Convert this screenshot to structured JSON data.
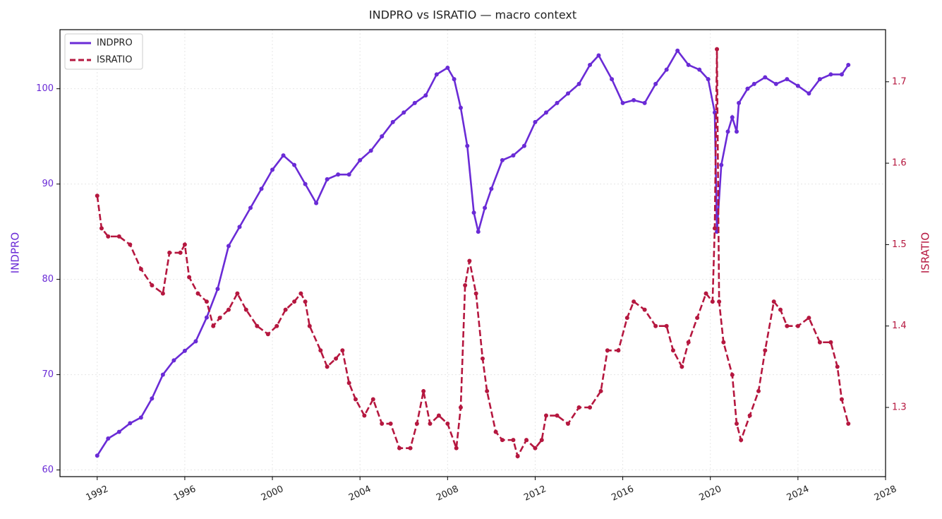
{
  "chart_data": {
    "type": "line",
    "title": "INDPRO vs ISRATIO — macro context",
    "ylabel": "INDPRO",
    "y2label": "ISRATIO",
    "xlim": [
      1990.3,
      2028
    ],
    "xticks": [
      1992,
      1996,
      2000,
      2004,
      2008,
      2012,
      2016,
      2020,
      2024,
      2028
    ],
    "ylim": [
      59.3,
      106.2
    ],
    "yticks": [
      60,
      70,
      80,
      90,
      100
    ],
    "y2lim": [
      1.215,
      1.764
    ],
    "y2ticks": [
      1.3,
      1.4,
      1.5,
      1.6,
      1.7
    ],
    "grid": true,
    "legend": "upper-left",
    "series": [
      {
        "name": "INDPRO",
        "color": "#6a2bd6",
        "linestyle": "solid",
        "x": [
          1992.0,
          1992.5,
          1993.0,
          1993.5,
          1994.0,
          1994.5,
          1995.0,
          1995.5,
          1996.0,
          1996.5,
          1997.0,
          1997.5,
          1998.0,
          1998.5,
          1999.0,
          1999.5,
          2000.0,
          2000.5,
          2001.0,
          2001.5,
          2002.0,
          2002.5,
          2003.0,
          2003.5,
          2004.0,
          2004.5,
          2005.0,
          2005.5,
          2006.0,
          2006.5,
          2007.0,
          2007.5,
          2008.0,
          2008.3,
          2008.6,
          2008.9,
          2009.2,
          2009.4,
          2009.7,
          2010.0,
          2010.5,
          2011.0,
          2011.5,
          2012.0,
          2012.5,
          2013.0,
          2013.5,
          2014.0,
          2014.5,
          2014.9,
          2015.5,
          2016.0,
          2016.5,
          2017.0,
          2017.5,
          2018.0,
          2018.5,
          2019.0,
          2019.5,
          2019.9,
          2020.2,
          2020.3,
          2020.5,
          2020.8,
          2021.0,
          2021.2,
          2021.3,
          2021.7,
          2022.0,
          2022.5,
          2023.0,
          2023.5,
          2024.0,
          2024.5,
          2025.0,
          2025.5,
          2026.0,
          2026.3
        ],
        "values": [
          61.5,
          63.3,
          64.0,
          64.9,
          65.5,
          67.5,
          70.0,
          71.5,
          72.5,
          73.5,
          76.0,
          79.0,
          83.5,
          85.5,
          87.5,
          89.5,
          91.5,
          93.0,
          92.0,
          90.0,
          88.0,
          90.5,
          91.0,
          91.0,
          92.5,
          93.5,
          95.0,
          96.5,
          97.5,
          98.5,
          99.3,
          101.5,
          102.2,
          101.0,
          98,
          94,
          87,
          85,
          87.5,
          89.5,
          92.5,
          93.0,
          94.0,
          96.5,
          97.5,
          98.5,
          99.5,
          100.5,
          102.5,
          103.5,
          101.0,
          98.5,
          98.8,
          98.5,
          100.5,
          102.0,
          104.0,
          102.5,
          102.0,
          101.0,
          97.5,
          85,
          92,
          95.5,
          97,
          95.5,
          98.5,
          100,
          100.5,
          101.2,
          100.5,
          101.0,
          100.3,
          99.5,
          101,
          101.5,
          101.5,
          102.5
        ]
      },
      {
        "name": "ISRATIO",
        "color": "#b5173f",
        "linestyle": "dashed",
        "axis": "y2",
        "x": [
          1992.0,
          1992.2,
          1992.5,
          1993.0,
          1993.5,
          1994.0,
          1994.5,
          1995.0,
          1995.3,
          1995.8,
          1996.0,
          1996.2,
          1996.6,
          1997.0,
          1997.3,
          1997.6,
          1998.0,
          1998.4,
          1998.8,
          1999.3,
          1999.8,
          2000.2,
          2000.6,
          2001.0,
          2001.3,
          2001.5,
          2001.7,
          2002.2,
          2002.5,
          2002.9,
          2003.2,
          2003.5,
          2003.8,
          2004.2,
          2004.6,
          2005.0,
          2005.4,
          2005.8,
          2006.3,
          2006.6,
          2006.9,
          2007.2,
          2007.6,
          2008.0,
          2008.4,
          2008.6,
          2008.8,
          2009.0,
          2009.3,
          2009.6,
          2009.8,
          2010.2,
          2010.5,
          2011.0,
          2011.2,
          2011.6,
          2012.0,
          2012.3,
          2012.5,
          2013.0,
          2013.5,
          2014.0,
          2014.5,
          2015.0,
          2015.3,
          2015.8,
          2016.2,
          2016.5,
          2017.0,
          2017.5,
          2018.0,
          2018.3,
          2018.7,
          2019.0,
          2019.4,
          2019.8,
          2020.1,
          2020.2,
          2020.3,
          2020.4,
          2020.6,
          2021.0,
          2021.2,
          2021.4,
          2021.8,
          2022.2,
          2022.5,
          2022.9,
          2023.2,
          2023.5,
          2024.0,
          2024.5,
          2025.0,
          2025.5,
          2025.8,
          2026.0,
          2026.3
        ],
        "values": [
          1.56,
          1.52,
          1.51,
          1.51,
          1.5,
          1.47,
          1.45,
          1.44,
          1.49,
          1.49,
          1.5,
          1.46,
          1.44,
          1.43,
          1.4,
          1.41,
          1.42,
          1.44,
          1.42,
          1.4,
          1.39,
          1.4,
          1.42,
          1.43,
          1.44,
          1.43,
          1.4,
          1.37,
          1.35,
          1.36,
          1.37,
          1.33,
          1.31,
          1.29,
          1.31,
          1.28,
          1.28,
          1.25,
          1.25,
          1.28,
          1.32,
          1.28,
          1.29,
          1.28,
          1.25,
          1.3,
          1.45,
          1.48,
          1.44,
          1.36,
          1.32,
          1.27,
          1.26,
          1.26,
          1.24,
          1.26,
          1.25,
          1.26,
          1.29,
          1.29,
          1.28,
          1.3,
          1.3,
          1.32,
          1.37,
          1.37,
          1.41,
          1.43,
          1.42,
          1.4,
          1.4,
          1.37,
          1.35,
          1.38,
          1.41,
          1.44,
          1.43,
          1.52,
          1.74,
          1.43,
          1.38,
          1.34,
          1.28,
          1.26,
          1.29,
          1.32,
          1.37,
          1.43,
          1.42,
          1.4,
          1.4,
          1.41,
          1.38,
          1.38,
          1.35,
          1.31,
          1.28
        ]
      }
    ]
  }
}
